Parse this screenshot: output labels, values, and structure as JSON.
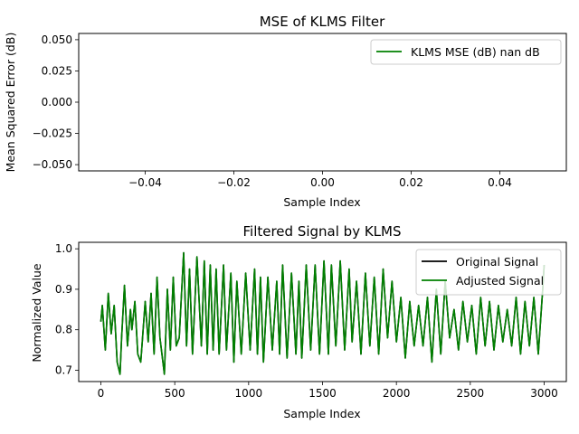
{
  "chart_data": [
    {
      "type": "line",
      "title": "MSE of KLMS Filter",
      "xlabel": "Sample Index",
      "ylabel": "Mean Squared Error (dB)",
      "xlim": [
        -0.055,
        0.055
      ],
      "ylim": [
        -0.055,
        0.055
      ],
      "xticks": [
        -0.04,
        -0.02,
        0.0,
        0.02,
        0.04
      ],
      "xtick_labels": [
        "−0.04",
        "−0.02",
        "0.00",
        "0.02",
        "0.04"
      ],
      "yticks": [
        0.05,
        0.025,
        0.0,
        -0.025,
        -0.05
      ],
      "ytick_labels": [
        "0.050",
        "0.025",
        "0.000",
        "−0.025",
        "−0.050"
      ],
      "grid": false,
      "legend_position": "upper right",
      "series": [
        {
          "name": "KLMS MSE (dB) nan dB",
          "color": "#008000",
          "values": []
        }
      ]
    },
    {
      "type": "line",
      "title": "Filtered Signal by KLMS",
      "xlabel": "Sample Index",
      "ylabel": "Normalized Value",
      "xlim": [
        -150,
        3150
      ],
      "ylim": [
        0.672,
        1.016
      ],
      "xticks": [
        0,
        500,
        1000,
        1500,
        2000,
        2500,
        3000
      ],
      "xtick_labels": [
        "0",
        "500",
        "1000",
        "1500",
        "2000",
        "2500",
        "3000"
      ],
      "yticks": [
        1.0,
        0.9,
        0.8,
        0.7
      ],
      "ytick_labels": [
        "1.0",
        "0.9",
        "0.8",
        "0.7"
      ],
      "grid": false,
      "legend_position": "upper right",
      "series": [
        {
          "name": "Original Signal",
          "color": "#000000",
          "x": [
            0,
            10,
            30,
            50,
            70,
            90,
            110,
            130,
            140,
            160,
            180,
            200,
            210,
            230,
            250,
            270,
            300,
            320,
            340,
            360,
            380,
            400,
            420,
            430,
            450,
            470,
            490,
            510,
            530,
            560,
            580,
            600,
            620,
            650,
            680,
            700,
            720,
            740,
            760,
            780,
            800,
            830,
            850,
            880,
            900,
            920,
            950,
            980,
            1010,
            1040,
            1060,
            1080,
            1100,
            1130,
            1160,
            1190,
            1210,
            1230,
            1260,
            1290,
            1320,
            1340,
            1360,
            1390,
            1420,
            1450,
            1480,
            1510,
            1540,
            1560,
            1590,
            1620,
            1650,
            1680,
            1700,
            1730,
            1760,
            1790,
            1820,
            1850,
            1880,
            1910,
            1940,
            1970,
            2000,
            2030,
            2060,
            2090,
            2120,
            2150,
            2180,
            2210,
            2240,
            2270,
            2300,
            2330,
            2360,
            2390,
            2420,
            2450,
            2480,
            2510,
            2540,
            2570,
            2600,
            2630,
            2660,
            2690,
            2720,
            2750,
            2780,
            2810,
            2840,
            2870,
            2900,
            2930,
            2960,
            2990,
            3000
          ],
          "values": [
            0.82,
            0.86,
            0.75,
            0.89,
            0.79,
            0.86,
            0.72,
            0.69,
            0.78,
            0.91,
            0.76,
            0.85,
            0.8,
            0.87,
            0.74,
            0.72,
            0.87,
            0.77,
            0.89,
            0.74,
            0.93,
            0.78,
            0.72,
            0.69,
            0.9,
            0.75,
            0.93,
            0.76,
            0.78,
            0.99,
            0.76,
            0.95,
            0.74,
            0.98,
            0.76,
            0.97,
            0.74,
            0.96,
            0.75,
            0.95,
            0.74,
            0.96,
            0.75,
            0.94,
            0.72,
            0.92,
            0.74,
            0.94,
            0.75,
            0.95,
            0.74,
            0.93,
            0.72,
            0.93,
            0.75,
            0.92,
            0.74,
            0.96,
            0.73,
            0.94,
            0.74,
            0.92,
            0.73,
            0.96,
            0.75,
            0.96,
            0.74,
            0.97,
            0.74,
            0.96,
            0.76,
            0.97,
            0.75,
            0.95,
            0.77,
            0.92,
            0.74,
            0.94,
            0.76,
            0.93,
            0.74,
            0.95,
            0.78,
            0.92,
            0.77,
            0.88,
            0.73,
            0.87,
            0.76,
            0.86,
            0.76,
            0.88,
            0.72,
            0.9,
            0.74,
            0.92,
            0.78,
            0.85,
            0.75,
            0.87,
            0.77,
            0.86,
            0.74,
            0.88,
            0.76,
            0.87,
            0.75,
            0.86,
            0.77,
            0.85,
            0.76,
            0.88,
            0.74,
            0.87,
            0.76,
            0.88,
            0.74,
            0.9,
            0.96
          ]
        },
        {
          "name": "Adjusted Signal",
          "color": "#008000",
          "x": [
            0,
            10,
            30,
            50,
            70,
            90,
            110,
            130,
            140,
            160,
            180,
            200,
            210,
            230,
            250,
            270,
            300,
            320,
            340,
            360,
            380,
            400,
            420,
            430,
            450,
            470,
            490,
            510,
            530,
            560,
            580,
            600,
            620,
            650,
            680,
            700,
            720,
            740,
            760,
            780,
            800,
            830,
            850,
            880,
            900,
            920,
            950,
            980,
            1010,
            1040,
            1060,
            1080,
            1100,
            1130,
            1160,
            1190,
            1210,
            1230,
            1260,
            1290,
            1320,
            1340,
            1360,
            1390,
            1420,
            1450,
            1480,
            1510,
            1540,
            1560,
            1590,
            1620,
            1650,
            1680,
            1700,
            1730,
            1760,
            1790,
            1820,
            1850,
            1880,
            1910,
            1940,
            1970,
            2000,
            2030,
            2060,
            2090,
            2120,
            2150,
            2180,
            2210,
            2240,
            2270,
            2300,
            2330,
            2360,
            2390,
            2420,
            2450,
            2480,
            2510,
            2540,
            2570,
            2600,
            2630,
            2660,
            2690,
            2720,
            2750,
            2780,
            2810,
            2840,
            2870,
            2900,
            2930,
            2960,
            2990,
            3000
          ],
          "values": [
            0.82,
            0.86,
            0.75,
            0.89,
            0.79,
            0.86,
            0.72,
            0.69,
            0.78,
            0.91,
            0.76,
            0.85,
            0.8,
            0.87,
            0.74,
            0.72,
            0.87,
            0.77,
            0.89,
            0.74,
            0.93,
            0.78,
            0.72,
            0.69,
            0.9,
            0.75,
            0.93,
            0.76,
            0.78,
            0.99,
            0.76,
            0.95,
            0.74,
            0.98,
            0.76,
            0.97,
            0.74,
            0.96,
            0.75,
            0.95,
            0.74,
            0.96,
            0.75,
            0.94,
            0.72,
            0.92,
            0.74,
            0.94,
            0.75,
            0.95,
            0.74,
            0.93,
            0.72,
            0.93,
            0.75,
            0.92,
            0.74,
            0.96,
            0.73,
            0.94,
            0.74,
            0.92,
            0.73,
            0.96,
            0.75,
            0.96,
            0.74,
            0.97,
            0.74,
            0.96,
            0.76,
            0.97,
            0.75,
            0.95,
            0.77,
            0.92,
            0.74,
            0.94,
            0.76,
            0.93,
            0.74,
            0.95,
            0.78,
            0.92,
            0.77,
            0.88,
            0.73,
            0.87,
            0.76,
            0.86,
            0.76,
            0.88,
            0.72,
            0.9,
            0.74,
            0.92,
            0.78,
            0.85,
            0.75,
            0.87,
            0.77,
            0.86,
            0.74,
            0.88,
            0.76,
            0.87,
            0.75,
            0.86,
            0.77,
            0.85,
            0.76,
            0.88,
            0.74,
            0.87,
            0.76,
            0.88,
            0.74,
            0.9,
            0.96
          ]
        }
      ]
    }
  ]
}
